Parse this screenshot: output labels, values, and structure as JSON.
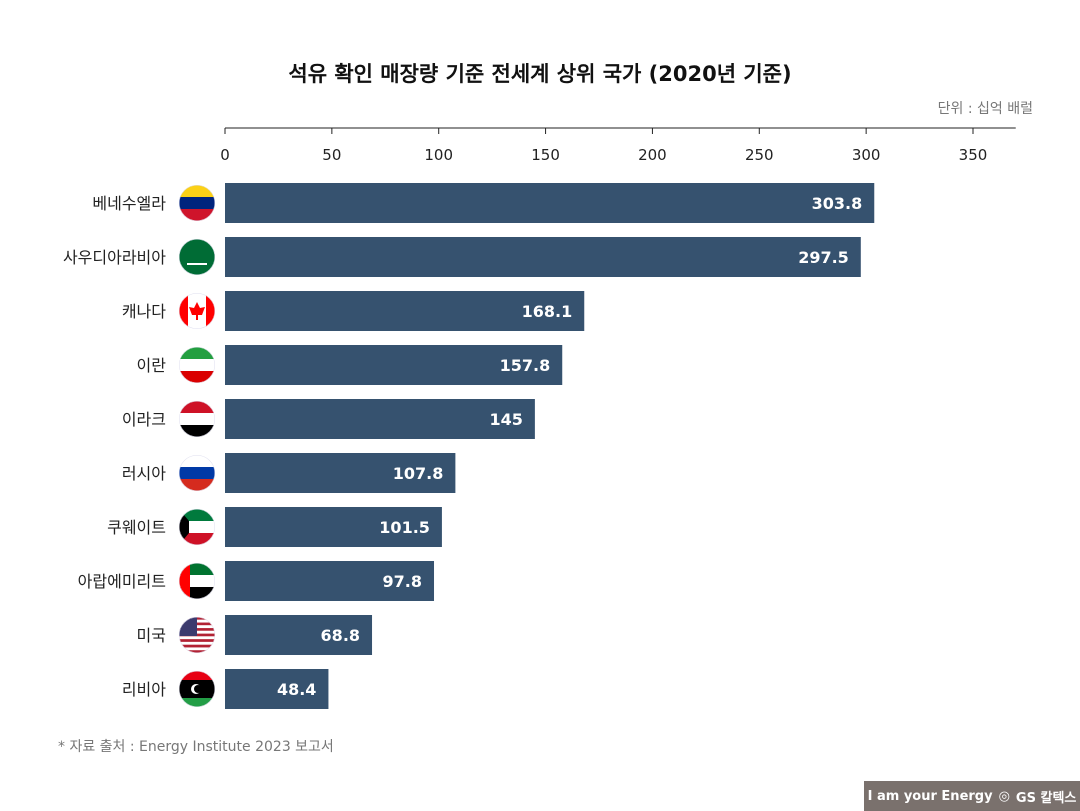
{
  "chart_data": {
    "type": "bar",
    "orientation": "horizontal",
    "title": "석유 확인 매장량 기준 전세계 상위 국가 (2020년 기준)",
    "unit_label": "단위 : 십억 배럴",
    "categories": [
      "베네수엘라",
      "사우디아라비아",
      "캐나다",
      "이란",
      "이라크",
      "러시아",
      "쿠웨이트",
      "아랍에미리트",
      "미국",
      "리비아"
    ],
    "values": [
      303.8,
      297.5,
      168.1,
      157.8,
      145,
      107.8,
      101.5,
      97.8,
      68.8,
      48.4
    ],
    "value_labels": [
      "303.8",
      "297.5",
      "168.1",
      "157.8",
      "145",
      "107.8",
      "101.5",
      "97.8",
      "68.8",
      "48.4"
    ],
    "xlim": [
      0,
      370
    ],
    "ticks": [
      0,
      50,
      100,
      150,
      200,
      250,
      300,
      350
    ],
    "axis_position": "top",
    "grid": false,
    "bar_color": "#36526f",
    "flags": [
      "venezuela",
      "saudi-arabia",
      "canada",
      "iran",
      "iraq",
      "russia",
      "kuwait",
      "uae",
      "usa",
      "libya"
    ]
  },
  "source": "* 자료 출처 : Energy Institute 2023 보고서",
  "brand": {
    "slogan": "I am your Energy",
    "logo": "GS 칼텍스"
  }
}
